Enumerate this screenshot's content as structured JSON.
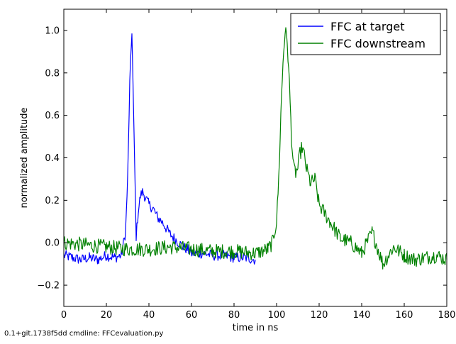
{
  "chart_data": {
    "type": "line",
    "xlabel": "time in ns",
    "ylabel": "normalized amplitude",
    "xlim": [
      0,
      180
    ],
    "ylim": [
      -0.3,
      1.1
    ],
    "x_ticks": [
      0,
      20,
      40,
      60,
      80,
      100,
      120,
      140,
      160,
      180
    ],
    "x_tick_labels": [
      "0",
      "20",
      "40",
      "60",
      "80",
      "100",
      "120",
      "140",
      "160",
      "180"
    ],
    "y_ticks": [
      -0.2,
      0.0,
      0.2,
      0.4,
      0.6,
      0.8,
      1.0
    ],
    "y_tick_labels": [
      "−0.2",
      "0.0",
      "0.2",
      "0.4",
      "0.6",
      "0.8",
      "1.0"
    ],
    "grid": false,
    "legend_position": "top-right",
    "series": [
      {
        "name": "FFC at target",
        "color": "#0000ff",
        "x": [
          0,
          4,
          8,
          12,
          16,
          20,
          24,
          27,
          29,
          30,
          31,
          32,
          33,
          34,
          35,
          36,
          37,
          38,
          40,
          42,
          44,
          46,
          48,
          50,
          52,
          54,
          56,
          58,
          60,
          62,
          66,
          70,
          75,
          80,
          85,
          90
        ],
        "y": [
          -0.06,
          -0.07,
          -0.08,
          -0.07,
          -0.08,
          -0.06,
          -0.07,
          -0.06,
          0.05,
          0.3,
          0.75,
          1.0,
          0.5,
          0.03,
          0.15,
          0.22,
          0.24,
          0.22,
          0.18,
          0.16,
          0.12,
          0.1,
          0.07,
          0.04,
          0.02,
          0.0,
          -0.02,
          -0.03,
          -0.05,
          -0.05,
          -0.05,
          -0.06,
          -0.06,
          -0.07,
          -0.07,
          -0.08
        ]
      },
      {
        "name": "FFC downstream",
        "color": "#008000",
        "x": [
          0,
          10,
          20,
          30,
          40,
          50,
          60,
          70,
          80,
          90,
          96,
          98,
          100,
          101,
          102,
          103,
          104,
          105,
          106,
          107,
          108,
          109,
          110,
          111,
          112,
          113,
          114,
          116,
          118,
          120,
          125,
          130,
          135,
          140,
          145,
          150,
          155,
          160,
          165,
          170,
          175,
          180
        ],
        "y": [
          0.0,
          -0.01,
          -0.02,
          -0.03,
          -0.03,
          -0.02,
          -0.03,
          -0.04,
          -0.04,
          -0.05,
          -0.03,
          0.0,
          0.1,
          0.3,
          0.6,
          0.85,
          1.0,
          0.95,
          0.75,
          0.5,
          0.35,
          0.33,
          0.35,
          0.42,
          0.45,
          0.41,
          0.35,
          0.28,
          0.3,
          0.18,
          0.1,
          0.02,
          0.0,
          -0.05,
          0.05,
          -0.1,
          -0.02,
          -0.06,
          -0.08,
          -0.07,
          -0.06,
          -0.08
        ]
      }
    ]
  },
  "footer_text": "0.1+git.1738f5dd cmdline: FFCevaluation.py"
}
